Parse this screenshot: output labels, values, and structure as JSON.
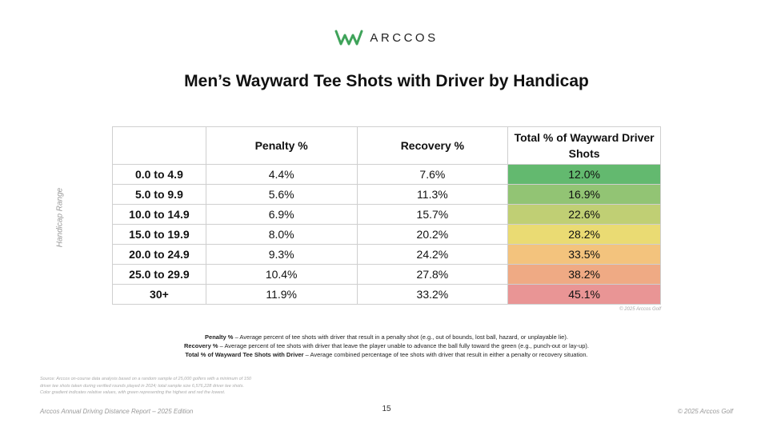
{
  "brand": {
    "name": "ARCCOS",
    "logo_color": "#3fa35a"
  },
  "chart_data": {
    "type": "table",
    "title": "Men’s Wayward Tee Shots with Driver by Handicap",
    "row_axis_label": "Handicap Range",
    "columns": [
      "",
      "Penalty %",
      "Recovery %",
      "Total % of Wayward Driver Shots"
    ],
    "rows": [
      {
        "range": "0.0 to 4.9",
        "penalty": "4.4%",
        "recovery": "7.6%",
        "total": "12.0%",
        "color": "#63b96f"
      },
      {
        "range": "5.0 to 9.9",
        "penalty": "5.6%",
        "recovery": "11.3%",
        "total": "16.9%",
        "color": "#92c474"
      },
      {
        "range": "10.0 to 14.9",
        "penalty": "6.9%",
        "recovery": "15.7%",
        "total": "22.6%",
        "color": "#c0cf74"
      },
      {
        "range": "15.0 to 19.9",
        "penalty": "8.0%",
        "recovery": "20.2%",
        "total": "28.2%",
        "color": "#eadb73"
      },
      {
        "range": "20.0 to 24.9",
        "penalty": "9.3%",
        "recovery": "24.2%",
        "total": "33.5%",
        "color": "#f3c37d"
      },
      {
        "range": "25.0 to 29.9",
        "penalty": "10.4%",
        "recovery": "27.8%",
        "total": "38.2%",
        "color": "#efaa84"
      },
      {
        "range": "30+",
        "penalty": "11.9%",
        "recovery": "33.2%",
        "total": "45.1%",
        "color": "#e99595"
      }
    ]
  },
  "credit": "© 2025 Arccos Golf",
  "definitions": [
    {
      "term": "Penalty %",
      "text": " – Average percent of tee shots with driver that result in a penalty shot (e.g., out of bounds, lost ball, hazard, or unplayable lie)."
    },
    {
      "term": "Recovery %",
      "text": " – Average percent of tee shots with driver that leave the player unable to advance the ball fully toward the green (e.g., punch-out or lay-up)."
    },
    {
      "term": "Total % of Wayward Tee Shots with Driver",
      "text": " – Average combined percentage of tee shots with driver that result in either a penalty or recovery situation."
    }
  ],
  "source_lines": [
    "Source: Arccos on-course data analysis based on a random sample of 25,000 golfers with a minimum of 150",
    "driver tee shots taken during verified rounds played in 2024; total sample size 6,576,228 driver tee shots.",
    "Color gradient indicates relative values, with green representing the highest and red the lowest."
  ],
  "footer": {
    "left": "Arccos Annual Driving Distance Report – 2025 Edition",
    "page": "15",
    "right": "© 2025 Arccos Golf"
  }
}
